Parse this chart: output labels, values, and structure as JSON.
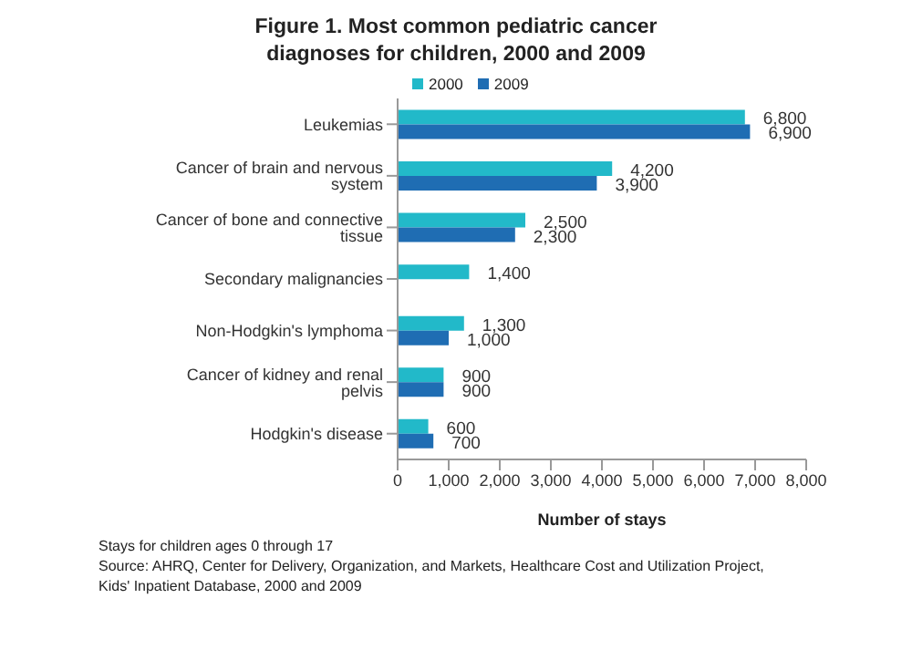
{
  "chart_data": {
    "type": "bar",
    "orientation": "horizontal",
    "title": "Figure 1. Most common pediatric cancer diagnoses for children, 2000 and 2009",
    "xlabel": "Number of stays",
    "categories": [
      "Leukemias",
      "Cancer of brain and nervous system",
      "Cancer of bone and connective tissue",
      "Secondary malignancies",
      "Non-Hodgkin's lymphoma",
      "Cancer of kidney and renal pelvis",
      "Hodgkin's disease"
    ],
    "series": [
      {
        "name": "2000",
        "color": "#22b9c9",
        "values": [
          6800,
          4200,
          2500,
          1400,
          1300,
          900,
          600
        ],
        "value_labels": [
          "6,800",
          "4,200",
          "2,500",
          "1,400",
          "1,300",
          "900",
          "600"
        ]
      },
      {
        "name": "2009",
        "color": "#1f6db3",
        "values": [
          6900,
          3900,
          2300,
          null,
          1000,
          900,
          700
        ],
        "value_labels": [
          "6,900",
          "3,900",
          "2,300",
          null,
          "1,000",
          "900",
          "700"
        ]
      }
    ],
    "xlim": [
      0,
      8000
    ],
    "xticks": [
      0,
      {
        "value": 1000,
        "label": "1,000"
      },
      {
        "value": 2000,
        "label": "2,000"
      },
      {
        "value": 3000,
        "label": "3,000"
      },
      {
        "value": 4000,
        "label": "4,000"
      },
      {
        "value": 5000,
        "label": "5,000"
      },
      {
        "value": 6000,
        "label": "6,000"
      },
      {
        "value": 7000,
        "label": "7,000"
      },
      {
        "value": 8000,
        "label": "8,000"
      }
    ],
    "grid": false,
    "legend": "top left",
    "annotations": [
      "Stays for children ages 0 through 17",
      "Source: AHRQ, Center for Delivery, Organization, and Markets, Healthcare Cost and Utilization Project, Kids' Inpatient Database, 2000 and 2009"
    ]
  }
}
